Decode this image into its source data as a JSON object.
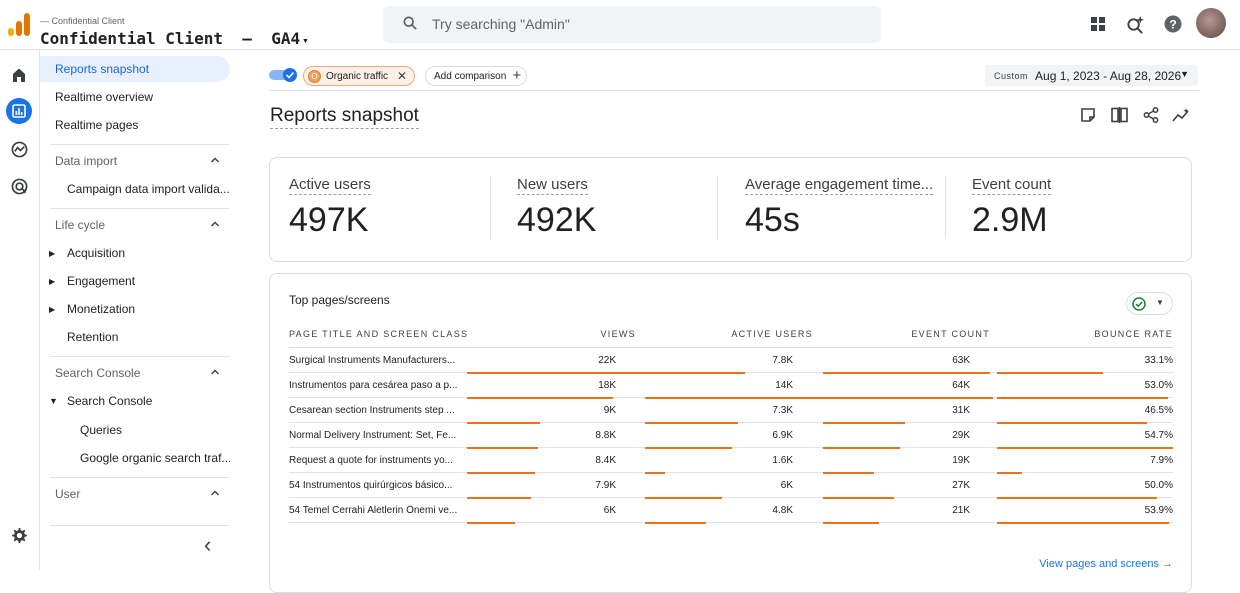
{
  "header": {
    "account_small": "— Confidential Client",
    "account_title": "Confidential Client  —  GA4",
    "account_caret": "▾",
    "search_placeholder": "Try searching \"Admin\""
  },
  "rail": {
    "icons": [
      "home-icon",
      "reports-icon",
      "explore-icon",
      "advertising-icon",
      "settings-icon"
    ]
  },
  "nav": {
    "items": [
      {
        "label": "Reports snapshot"
      },
      {
        "label": "Realtime overview"
      },
      {
        "label": "Realtime pages"
      }
    ],
    "data_import": {
      "title": "Data import",
      "items": [
        "Campaign data import valida..."
      ]
    },
    "life_cycle": {
      "title": "Life cycle",
      "items": [
        "Acquisition",
        "Engagement",
        "Monetization",
        "Retention"
      ]
    },
    "search_console": {
      "title": "Search Console",
      "group": "Search Console",
      "items": [
        "Queries",
        "Google organic search traf..."
      ]
    },
    "user": {
      "title": "User"
    },
    "collapse_glyph": "‹"
  },
  "toolbar": {
    "segment_chip": "Organic traffic",
    "segment_badge": "O",
    "add_comparison": "Add comparison",
    "date_label": "Custom",
    "date_range": "Aug 1, 2023 - Aug 28, 2026"
  },
  "page": {
    "title": "Reports snapshot"
  },
  "metrics": [
    {
      "label": "Active users",
      "value": "497K"
    },
    {
      "label": "New users",
      "value": "492K"
    },
    {
      "label": "Average engagement time...",
      "value": "45s"
    },
    {
      "label": "Event count",
      "value": "2.9M"
    }
  ],
  "table": {
    "title": "Top pages/screens",
    "headers": [
      "Page title and screen class",
      "Views",
      "Active users",
      "Event count",
      "Bounce rate"
    ],
    "rows": [
      {
        "page": "Surgical Instruments Manufacturers...",
        "views": "22K",
        "active_users": "7.8K",
        "event_count": "63K",
        "bounce_rate": "33.1%",
        "views_pct": 100,
        "users_pct": 56,
        "events_pct": 98,
        "bounce_pct": 60
      },
      {
        "page": "Instrumentos para cesárea paso a p...",
        "views": "18K",
        "active_users": "14K",
        "event_count": "64K",
        "bounce_rate": "53.0%",
        "views_pct": 82,
        "users_pct": 100,
        "events_pct": 100,
        "bounce_pct": 97
      },
      {
        "page": "Cesarean section Instruments step ...",
        "views": "9K",
        "active_users": "7.3K",
        "event_count": "31K",
        "bounce_rate": "46.5%",
        "views_pct": 41,
        "users_pct": 52,
        "events_pct": 48,
        "bounce_pct": 85
      },
      {
        "page": "Normal Delivery Instrument: Set, Fe...",
        "views": "8.8K",
        "active_users": "6.9K",
        "event_count": "29K",
        "bounce_rate": "54.7%",
        "views_pct": 40,
        "users_pct": 49,
        "events_pct": 45,
        "bounce_pct": 100
      },
      {
        "page": "Request a quote for instruments yo...",
        "views": "8.4K",
        "active_users": "1.6K",
        "event_count": "19K",
        "bounce_rate": "7.9%",
        "views_pct": 38,
        "users_pct": 11,
        "events_pct": 30,
        "bounce_pct": 14
      },
      {
        "page": "54 Instrumentos quirúrgicos básico...",
        "views": "7.9K",
        "active_users": "6K",
        "event_count": "27K",
        "bounce_rate": "50.0%",
        "views_pct": 36,
        "users_pct": 43,
        "events_pct": 42,
        "bounce_pct": 91
      },
      {
        "page": "54 Temel Cerrahi Aletlerin Önemi ve...",
        "views": "6K",
        "active_users": "4.8K",
        "event_count": "21K",
        "bounce_rate": "53.9%",
        "views_pct": 27,
        "users_pct": 34,
        "events_pct": 33,
        "bounce_pct": 98
      }
    ],
    "link": "View pages and screens  →"
  },
  "colors": {
    "accent": "#1a73e8",
    "bar": "#e8711a",
    "logo": [
      "#f9ab00",
      "#e37400",
      "#e37400"
    ]
  }
}
